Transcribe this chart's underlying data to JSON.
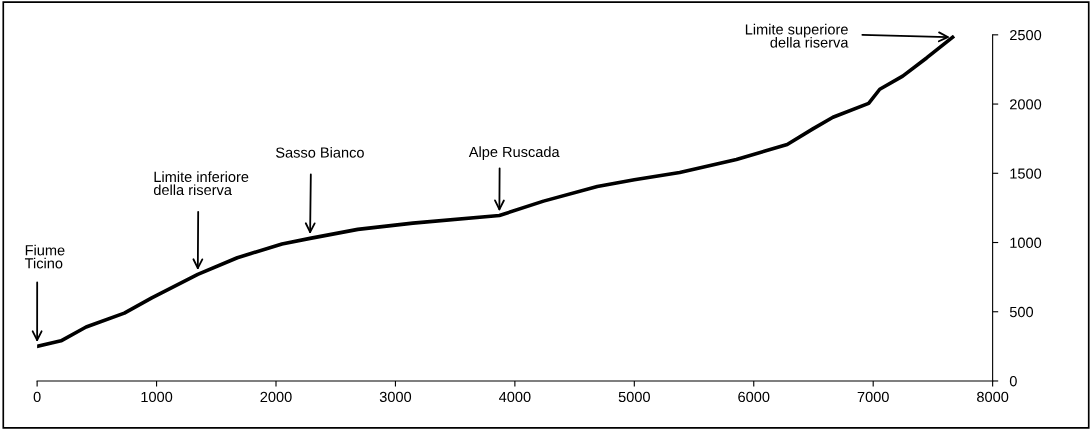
{
  "chart_data": {
    "type": "line",
    "x": [
      0,
      200,
      410,
      730,
      960,
      1345,
      1676,
      2050,
      2285,
      2685,
      3146,
      3870,
      4240,
      4690,
      5000,
      5380,
      5855,
      6280,
      6495,
      6663,
      6962,
      7055,
      7247,
      7447,
      7665
    ],
    "series": [
      {
        "color": "#000000",
        "values": [
          250,
          290,
          390,
          490,
          600,
          770,
          890,
          990,
          1030,
          1095,
          1140,
          1195,
          1299,
          1404,
          1453,
          1506,
          1600,
          1708,
          1821,
          1905,
          2005,
          2107,
          2202,
          2333,
          2483
        ]
      }
    ],
    "xlim": [
      0,
      8000
    ],
    "xticks": [
      0,
      1000,
      2000,
      3000,
      4000,
      5000,
      6000,
      7000,
      8000
    ],
    "ylim": [
      0,
      2500
    ],
    "yticks": [
      0,
      500,
      1000,
      1500,
      2000,
      2500
    ],
    "grid": false,
    "legend": false,
    "marker": "none",
    "line_style": "solid",
    "annotations": [
      {
        "text": "Fiume\nTicino",
        "x": 0,
        "y": 250
      },
      {
        "text": "Limite inferiore\ndella riserva",
        "x": 1345,
        "y": 770
      },
      {
        "text": "Sasso Bianco",
        "x": 2285,
        "y": 1030
      },
      {
        "text": "Alpe Ruscada",
        "x": 3870,
        "y": 1195
      },
      {
        "text": "Limite superiore\ndella riserva",
        "x": 7665,
        "y": 2483
      }
    ]
  }
}
